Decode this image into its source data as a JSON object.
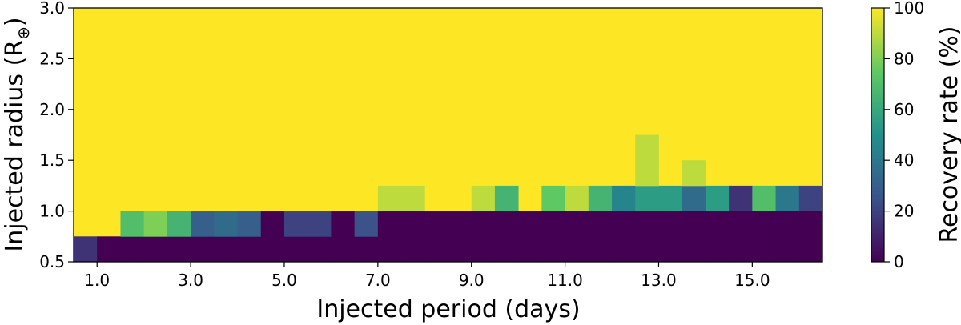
{
  "chart_data": {
    "type": "heatmap",
    "xlabel": "Injected period (days)",
    "ylabel": "Injected radius (R",
    "ylabel_symbol": "⊕",
    "ylabel_close": ")",
    "x_ticks": [
      "1.0",
      "3.0",
      "5.0",
      "7.0",
      "9.0",
      "11.0",
      "13.0",
      "15.0"
    ],
    "y_ticks": [
      "0.5",
      "1.0",
      "1.5",
      "2.0",
      "2.5",
      "3.0"
    ],
    "xlim": [
      0.5,
      16.5
    ],
    "ylim": [
      0.5,
      3.0
    ],
    "x_bin_width": 0.5,
    "y_bin_height": 0.25,
    "colorbar": {
      "label": "Recovery rate (%)",
      "ticks": [
        "0",
        "20",
        "40",
        "60",
        "80",
        "100"
      ],
      "range": [
        0,
        100
      ],
      "colormap": "viridis",
      "stops": [
        "#440154",
        "#3b528b",
        "#21918c",
        "#5ec962",
        "#fde725"
      ]
    },
    "default_value": 100,
    "cells": [
      {
        "x": 0.75,
        "y": 0.625,
        "v": 15
      },
      {
        "x": 1.25,
        "y": 0.625,
        "v": 0
      },
      {
        "x": 1.75,
        "y": 0.625,
        "v": 0
      },
      {
        "x": 2.25,
        "y": 0.625,
        "v": 0
      },
      {
        "x": 2.75,
        "y": 0.625,
        "v": 0
      },
      {
        "x": 3.25,
        "y": 0.625,
        "v": 0
      },
      {
        "x": 3.75,
        "y": 0.625,
        "v": 0
      },
      {
        "x": 4.25,
        "y": 0.625,
        "v": 0
      },
      {
        "x": 4.75,
        "y": 0.625,
        "v": 0
      },
      {
        "x": 5.25,
        "y": 0.625,
        "v": 0
      },
      {
        "x": 5.75,
        "y": 0.625,
        "v": 0
      },
      {
        "x": 6.25,
        "y": 0.625,
        "v": 0
      },
      {
        "x": 6.75,
        "y": 0.625,
        "v": 0
      },
      {
        "x": 7.25,
        "y": 0.625,
        "v": 0
      },
      {
        "x": 7.75,
        "y": 0.625,
        "v": 0
      },
      {
        "x": 8.25,
        "y": 0.625,
        "v": 0
      },
      {
        "x": 8.75,
        "y": 0.625,
        "v": 0
      },
      {
        "x": 9.25,
        "y": 0.625,
        "v": 0
      },
      {
        "x": 9.75,
        "y": 0.625,
        "v": 0
      },
      {
        "x": 10.25,
        "y": 0.625,
        "v": 0
      },
      {
        "x": 10.75,
        "y": 0.625,
        "v": 0
      },
      {
        "x": 11.25,
        "y": 0.625,
        "v": 0
      },
      {
        "x": 11.75,
        "y": 0.625,
        "v": 0
      },
      {
        "x": 12.25,
        "y": 0.625,
        "v": 0
      },
      {
        "x": 12.75,
        "y": 0.625,
        "v": 0
      },
      {
        "x": 13.25,
        "y": 0.625,
        "v": 0
      },
      {
        "x": 13.75,
        "y": 0.625,
        "v": 0
      },
      {
        "x": 14.25,
        "y": 0.625,
        "v": 0
      },
      {
        "x": 14.75,
        "y": 0.625,
        "v": 0
      },
      {
        "x": 15.25,
        "y": 0.625,
        "v": 0
      },
      {
        "x": 15.75,
        "y": 0.625,
        "v": 0
      },
      {
        "x": 16.25,
        "y": 0.625,
        "v": 0
      },
      {
        "x": 1.75,
        "y": 0.875,
        "v": 70
      },
      {
        "x": 2.25,
        "y": 0.875,
        "v": 80
      },
      {
        "x": 2.75,
        "y": 0.875,
        "v": 65
      },
      {
        "x": 3.25,
        "y": 0.875,
        "v": 30
      },
      {
        "x": 3.75,
        "y": 0.875,
        "v": 35
      },
      {
        "x": 4.25,
        "y": 0.875,
        "v": 30
      },
      {
        "x": 4.75,
        "y": 0.875,
        "v": 0
      },
      {
        "x": 5.25,
        "y": 0.875,
        "v": 20
      },
      {
        "x": 5.75,
        "y": 0.875,
        "v": 20
      },
      {
        "x": 6.25,
        "y": 0.875,
        "v": 0
      },
      {
        "x": 6.75,
        "y": 0.875,
        "v": 25
      },
      {
        "x": 7.25,
        "y": 0.875,
        "v": 0
      },
      {
        "x": 7.75,
        "y": 0.875,
        "v": 0
      },
      {
        "x": 8.25,
        "y": 0.875,
        "v": 0
      },
      {
        "x": 8.75,
        "y": 0.875,
        "v": 0
      },
      {
        "x": 9.25,
        "y": 0.875,
        "v": 0
      },
      {
        "x": 9.75,
        "y": 0.875,
        "v": 0
      },
      {
        "x": 10.25,
        "y": 0.875,
        "v": 0
      },
      {
        "x": 10.75,
        "y": 0.875,
        "v": 0
      },
      {
        "x": 11.25,
        "y": 0.875,
        "v": 0
      },
      {
        "x": 11.75,
        "y": 0.875,
        "v": 0
      },
      {
        "x": 12.25,
        "y": 0.875,
        "v": 0
      },
      {
        "x": 12.75,
        "y": 0.875,
        "v": 0
      },
      {
        "x": 13.25,
        "y": 0.875,
        "v": 0
      },
      {
        "x": 13.75,
        "y": 0.875,
        "v": 0
      },
      {
        "x": 14.25,
        "y": 0.875,
        "v": 0
      },
      {
        "x": 14.75,
        "y": 0.875,
        "v": 0
      },
      {
        "x": 15.25,
        "y": 0.875,
        "v": 0
      },
      {
        "x": 15.75,
        "y": 0.875,
        "v": 0
      },
      {
        "x": 16.25,
        "y": 0.875,
        "v": 0
      },
      {
        "x": 7.25,
        "y": 1.125,
        "v": 90
      },
      {
        "x": 7.75,
        "y": 1.125,
        "v": 90
      },
      {
        "x": 9.25,
        "y": 1.125,
        "v": 90
      },
      {
        "x": 9.75,
        "y": 1.125,
        "v": 65
      },
      {
        "x": 10.75,
        "y": 1.125,
        "v": 75
      },
      {
        "x": 11.25,
        "y": 1.125,
        "v": 90
      },
      {
        "x": 11.75,
        "y": 1.125,
        "v": 65
      },
      {
        "x": 12.25,
        "y": 1.125,
        "v": 45
      },
      {
        "x": 12.75,
        "y": 1.125,
        "v": 55
      },
      {
        "x": 13.25,
        "y": 1.125,
        "v": 55
      },
      {
        "x": 13.75,
        "y": 1.125,
        "v": 35
      },
      {
        "x": 14.25,
        "y": 1.125,
        "v": 55
      },
      {
        "x": 14.75,
        "y": 1.125,
        "v": 15
      },
      {
        "x": 15.25,
        "y": 1.125,
        "v": 70
      },
      {
        "x": 15.75,
        "y": 1.125,
        "v": 40
      },
      {
        "x": 16.25,
        "y": 1.125,
        "v": 20
      },
      {
        "x": 12.75,
        "y": 1.375,
        "v": 90
      },
      {
        "x": 13.75,
        "y": 1.375,
        "v": 90
      },
      {
        "x": 12.75,
        "y": 1.625,
        "v": 90
      }
    ]
  }
}
